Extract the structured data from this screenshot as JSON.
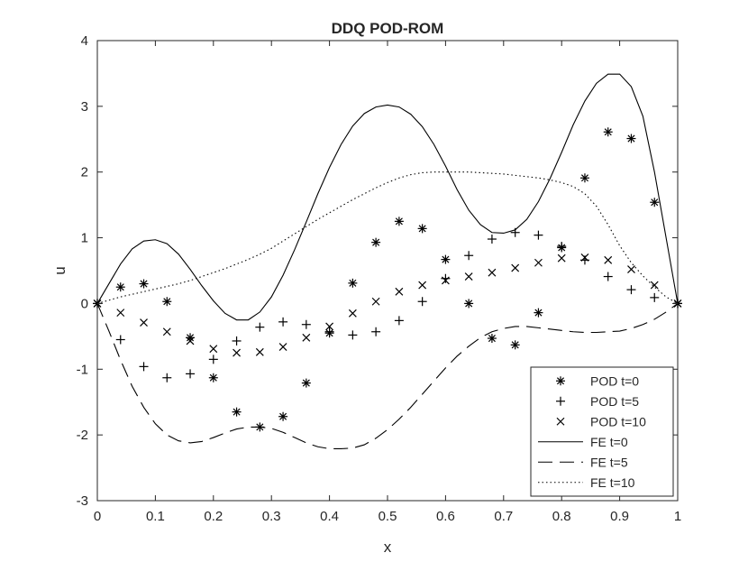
{
  "chart_data": {
    "type": "line",
    "title": "DDQ POD-ROM",
    "xlabel": "x",
    "ylabel": "u",
    "xlim": [
      0,
      1
    ],
    "ylim": [
      -3,
      4
    ],
    "xticks": [
      0,
      0.1,
      0.2,
      0.3,
      0.4,
      0.5,
      0.6,
      0.7,
      0.8,
      0.9,
      1
    ],
    "xtick_labels": [
      "0",
      "0.1",
      "0.2",
      "0.3",
      "0.4",
      "0.5",
      "0.6",
      "0.7",
      "0.8",
      "0.9",
      "1"
    ],
    "yticks": [
      -3,
      -2,
      -1,
      0,
      1,
      2,
      3,
      4
    ],
    "ytick_labels": [
      "-3",
      "-2",
      "-1",
      "0",
      "1",
      "2",
      "3",
      "4"
    ],
    "grid": false,
    "legend_position": "bottom-right",
    "color": "#000000",
    "series": [
      {
        "name": "POD t=0",
        "kind": "marker",
        "marker": "asterisk",
        "x": [
          0,
          0.04,
          0.08,
          0.12,
          0.16,
          0.2,
          0.24,
          0.28,
          0.32,
          0.36,
          0.4,
          0.44,
          0.48,
          0.52,
          0.56,
          0.6,
          0.64,
          0.68,
          0.72,
          0.76,
          0.8,
          0.84,
          0.88,
          0.92,
          0.96,
          1
        ],
        "y": [
          0,
          0.25,
          0.3,
          0.03,
          -0.52,
          -1.13,
          -1.65,
          -1.88,
          -1.72,
          -1.21,
          -0.45,
          0.31,
          0.93,
          1.25,
          1.14,
          0.67,
          0.0,
          -0.53,
          -0.63,
          -0.14,
          0.85,
          1.91,
          2.61,
          2.51,
          1.54,
          0
        ]
      },
      {
        "name": "POD t=5",
        "kind": "marker",
        "marker": "plus",
        "x": [
          0,
          0.04,
          0.08,
          0.12,
          0.16,
          0.2,
          0.24,
          0.28,
          0.32,
          0.36,
          0.4,
          0.44,
          0.48,
          0.52,
          0.56,
          0.6,
          0.64,
          0.68,
          0.72,
          0.76,
          0.8,
          0.84,
          0.88,
          0.92,
          0.96,
          1
        ],
        "y": [
          0,
          -0.55,
          -0.96,
          -1.13,
          -1.07,
          -0.85,
          -0.57,
          -0.36,
          -0.28,
          -0.32,
          -0.43,
          -0.48,
          -0.43,
          -0.26,
          0.03,
          0.38,
          0.73,
          0.98,
          1.08,
          1.04,
          0.87,
          0.66,
          0.41,
          0.21,
          0.09,
          0
        ]
      },
      {
        "name": "POD t=10",
        "kind": "marker",
        "marker": "cross",
        "x": [
          0,
          0.04,
          0.08,
          0.12,
          0.16,
          0.2,
          0.24,
          0.28,
          0.32,
          0.36,
          0.4,
          0.44,
          0.48,
          0.52,
          0.56,
          0.6,
          0.64,
          0.68,
          0.72,
          0.76,
          0.8,
          0.84,
          0.88,
          0.92,
          0.96,
          1
        ],
        "y": [
          0,
          -0.14,
          -0.29,
          -0.43,
          -0.57,
          -0.69,
          -0.75,
          -0.74,
          -0.66,
          -0.52,
          -0.35,
          -0.15,
          0.03,
          0.18,
          0.28,
          0.35,
          0.41,
          0.47,
          0.54,
          0.62,
          0.69,
          0.7,
          0.66,
          0.52,
          0.28,
          0
        ]
      },
      {
        "name": "FE t=0",
        "kind": "line",
        "dash": "solid",
        "x": [
          0,
          0.02,
          0.04,
          0.06,
          0.08,
          0.1,
          0.12,
          0.14,
          0.16,
          0.18,
          0.2,
          0.22,
          0.24,
          0.26,
          0.28,
          0.3,
          0.32,
          0.34,
          0.36,
          0.38,
          0.4,
          0.42,
          0.44,
          0.46,
          0.48,
          0.5,
          0.52,
          0.54,
          0.56,
          0.58,
          0.6,
          0.62,
          0.64,
          0.66,
          0.68,
          0.7,
          0.72,
          0.74,
          0.76,
          0.78,
          0.8,
          0.82,
          0.84,
          0.86,
          0.88,
          0.9,
          0.92,
          0.94,
          0.96,
          0.98,
          1
        ],
        "y": [
          0,
          0.3,
          0.6,
          0.83,
          0.95,
          0.97,
          0.91,
          0.75,
          0.52,
          0.27,
          0.04,
          -0.15,
          -0.25,
          -0.25,
          -0.13,
          0.1,
          0.43,
          0.82,
          1.24,
          1.67,
          2.07,
          2.42,
          2.7,
          2.89,
          2.99,
          3.02,
          2.99,
          2.88,
          2.69,
          2.42,
          2.09,
          1.73,
          1.42,
          1.2,
          1.08,
          1.07,
          1.12,
          1.28,
          1.55,
          1.9,
          2.3,
          2.72,
          3.08,
          3.35,
          3.49,
          3.49,
          3.3,
          2.85,
          2.0,
          1.0,
          0
        ]
      },
      {
        "name": "FE t=5",
        "kind": "line",
        "dash": "dashed",
        "x": [
          0,
          0.02,
          0.04,
          0.06,
          0.08,
          0.1,
          0.12,
          0.14,
          0.16,
          0.18,
          0.2,
          0.22,
          0.24,
          0.26,
          0.28,
          0.3,
          0.32,
          0.34,
          0.36,
          0.38,
          0.4,
          0.42,
          0.44,
          0.46,
          0.48,
          0.5,
          0.52,
          0.54,
          0.56,
          0.58,
          0.6,
          0.62,
          0.64,
          0.66,
          0.68,
          0.7,
          0.72,
          0.74,
          0.76,
          0.78,
          0.8,
          0.82,
          0.84,
          0.86,
          0.88,
          0.9,
          0.92,
          0.94,
          0.96,
          0.98,
          1
        ],
        "y": [
          0,
          -0.42,
          -0.86,
          -1.26,
          -1.58,
          -1.83,
          -2.0,
          -2.09,
          -2.12,
          -2.1,
          -2.04,
          -1.97,
          -1.91,
          -1.88,
          -1.88,
          -1.9,
          -1.96,
          -2.04,
          -2.12,
          -2.18,
          -2.21,
          -2.21,
          -2.2,
          -2.15,
          -2.05,
          -1.92,
          -1.76,
          -1.58,
          -1.38,
          -1.18,
          -0.98,
          -0.8,
          -0.65,
          -0.52,
          -0.43,
          -0.38,
          -0.35,
          -0.35,
          -0.37,
          -0.39,
          -0.41,
          -0.43,
          -0.44,
          -0.44,
          -0.43,
          -0.42,
          -0.38,
          -0.32,
          -0.24,
          -0.13,
          0
        ]
      },
      {
        "name": "FE t=10",
        "kind": "line",
        "dash": "dotted",
        "x": [
          0,
          0.02,
          0.04,
          0.06,
          0.08,
          0.1,
          0.12,
          0.14,
          0.16,
          0.18,
          0.2,
          0.22,
          0.24,
          0.26,
          0.28,
          0.3,
          0.32,
          0.34,
          0.36,
          0.38,
          0.4,
          0.42,
          0.44,
          0.46,
          0.48,
          0.5,
          0.52,
          0.54,
          0.56,
          0.58,
          0.6,
          0.62,
          0.64,
          0.66,
          0.68,
          0.7,
          0.72,
          0.74,
          0.76,
          0.78,
          0.8,
          0.82,
          0.84,
          0.86,
          0.88,
          0.9,
          0.92,
          0.94,
          0.96,
          0.98,
          1
        ],
        "y": [
          0,
          0.05,
          0.1,
          0.14,
          0.18,
          0.22,
          0.26,
          0.3,
          0.35,
          0.41,
          0.47,
          0.53,
          0.6,
          0.67,
          0.75,
          0.84,
          0.95,
          1.06,
          1.17,
          1.28,
          1.38,
          1.48,
          1.58,
          1.67,
          1.76,
          1.84,
          1.91,
          1.96,
          1.99,
          2.0,
          2.0,
          2.0,
          2.0,
          1.99,
          1.98,
          1.97,
          1.95,
          1.93,
          1.91,
          1.88,
          1.84,
          1.78,
          1.67,
          1.48,
          1.2,
          0.88,
          0.62,
          0.42,
          0.25,
          0.1,
          0
        ]
      }
    ]
  }
}
